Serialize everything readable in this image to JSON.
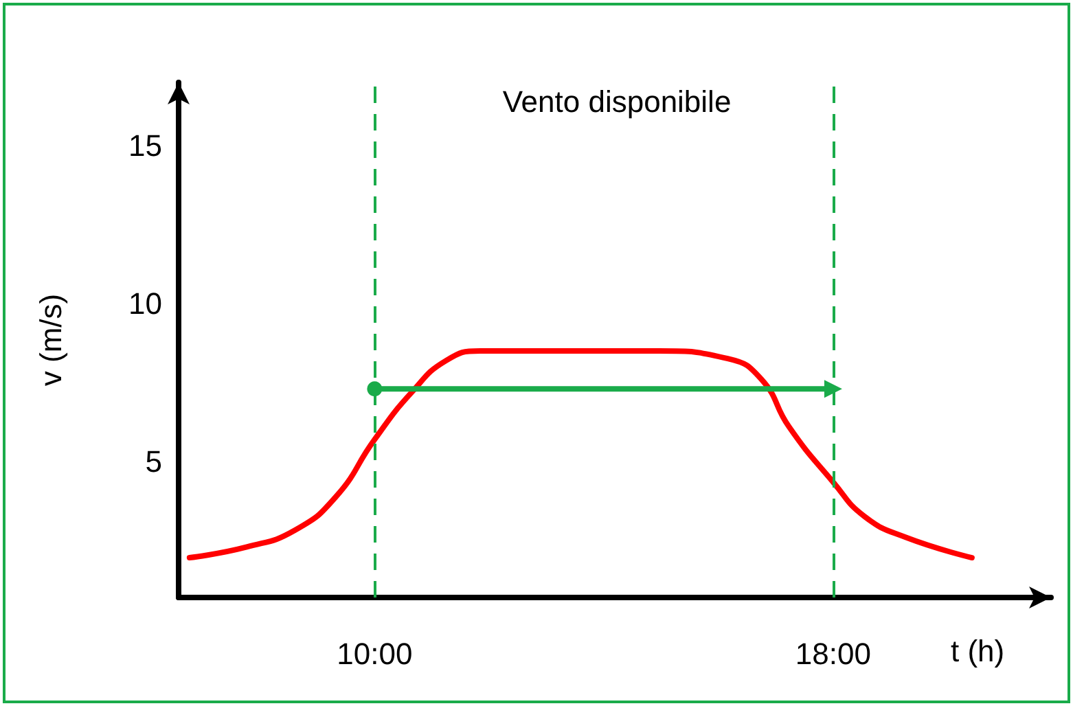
{
  "chart_data": {
    "type": "line",
    "title": "Vento disponibile",
    "xlabel": "t (h)",
    "ylabel": "v (m/s)",
    "xlim": [
      6.58,
      21.8
    ],
    "ylim": [
      0.7,
      17
    ],
    "xticks": [
      {
        "value": 10,
        "label": "10:00"
      },
      {
        "value": 18,
        "label": "18:00"
      }
    ],
    "yticks": [
      5,
      10,
      15
    ],
    "grid": false,
    "marker": "none",
    "series": [
      {
        "color": "#ff0000",
        "x": [
          6.77,
          7.77,
          8.61,
          9.33,
          10,
          10.65,
          11.25,
          11.84,
          13.04,
          14.96,
          16.16,
          16.75,
          17.23,
          18,
          18.55,
          19.27,
          20.42
        ],
        "values": [
          1.96,
          2.3,
          2.83,
          3.9,
          5.7,
          7.2,
          8.2,
          8.5,
          8.5,
          8.5,
          8.26,
          7.6,
          6.1,
          4.35,
          3.26,
          2.6,
          1.96
        ]
      },
      {
        "color": "#1aab4a",
        "x": [
          10,
          18
        ],
        "values": [
          7.3,
          7.3
        ],
        "marker": "circle"
      }
    ],
    "ref_lines": [
      {
        "axis": "x",
        "value": 10,
        "color": "#1aab4a",
        "line_style": "dashed"
      },
      {
        "axis": "x",
        "value": 18,
        "color": "#1aab4a",
        "line_style": "dashed"
      }
    ]
  }
}
